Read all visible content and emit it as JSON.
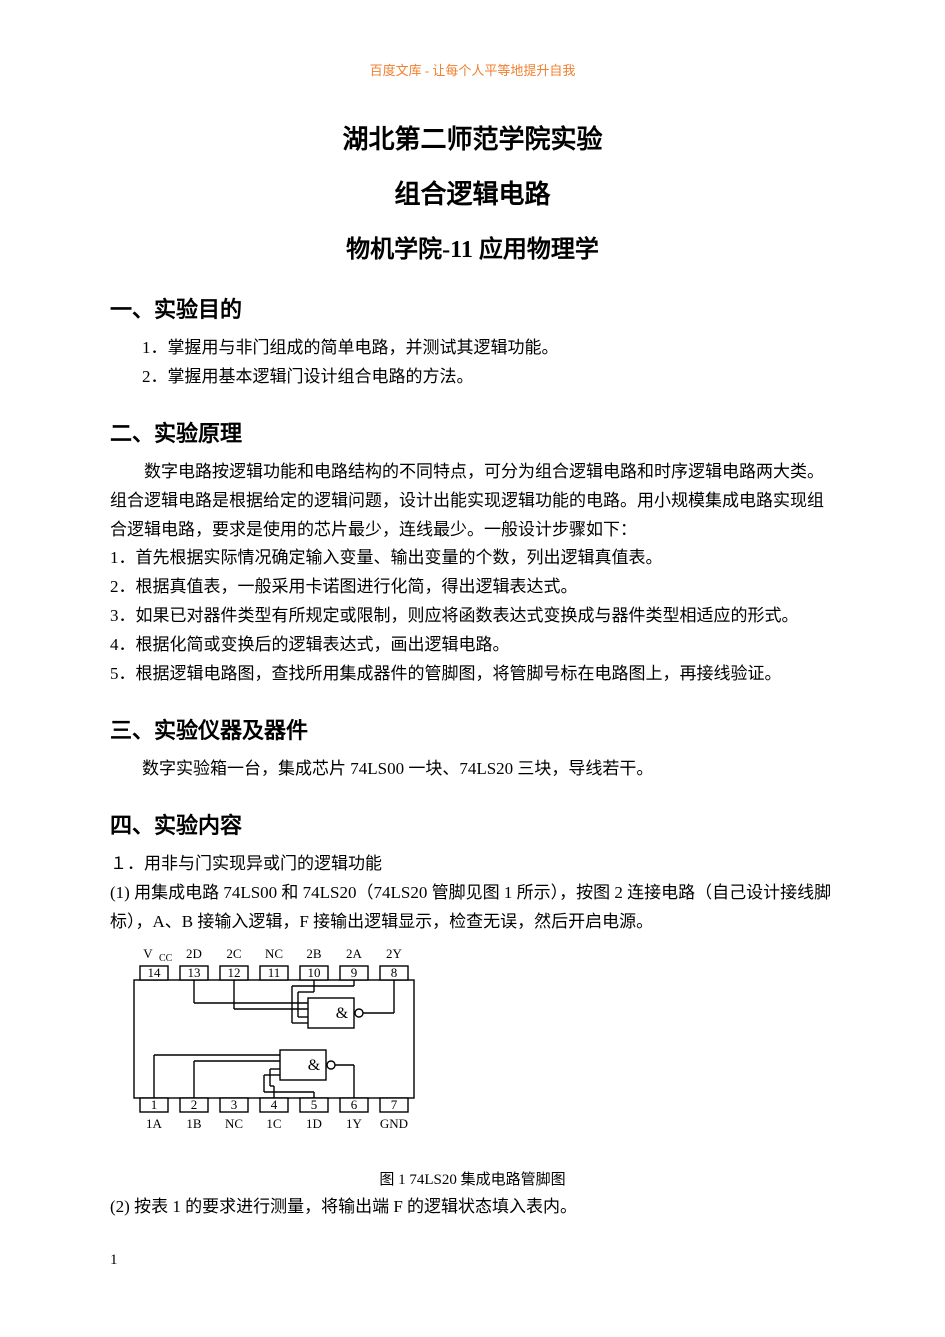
{
  "watermark": "百度文库 - 让每个人平等地提升自我",
  "title_main": "湖北第二师范学院实验",
  "title_sub": "组合逻辑电路",
  "title_class": "物机学院-11 应用物理学",
  "sec1": {
    "heading": "一、实验目的",
    "item1": "1．掌握用与非门组成的简单电路，并测试其逻辑功能。",
    "item2": "2．掌握用基本逻辑门设计组合电路的方法。"
  },
  "sec2": {
    "heading": "二、实验原理",
    "para": "数字电路按逻辑功能和电路结构的不同特点，可分为组合逻辑电路和时序逻辑电路两大类。组合逻辑电路是根据给定的逻辑问题，设计出能实现逻辑功能的电路。用小规模集成电路实现组合逻辑电路，要求是使用的芯片最少，连线最少。一般设计步骤如下：",
    "s1": "1．首先根据实际情况确定输入变量、输出变量的个数，列出逻辑真值表。",
    "s2": "2．根据真值表，一般采用卡诺图进行化简，得出逻辑表达式。",
    "s3": "3．如果已对器件类型有所规定或限制，则应将函数表达式变换成与器件类型相适应的形式。",
    "s4": "4．根据化简或变换后的逻辑表达式，画出逻辑电路。",
    "s5": "5．根据逻辑电路图，查找所用集成器件的管脚图，将管脚号标在电路图上，再接线验证。"
  },
  "sec3": {
    "heading": "三、实验仪器及器件",
    "text": "数字实验箱一台，集成芯片 74LS00 一块、74LS20 三块，导线若干。"
  },
  "sec4": {
    "heading": "四、实验内容",
    "sub1": "１．用非与门实现异或门的逻辑功能",
    "p1": "(1) 用集成电路 74LS00 和 74LS20（74LS20 管脚见图 1 所示），按图 2 连接电路（自己设计接线脚标），A、B 接输入逻辑，F 接输出逻辑显示，检查无误，然后开启电源。",
    "caption": "图 1    74LS20 集成电路管脚图",
    "p2": "(2) 按表 1 的要求进行测量，将输出端 F 的逻辑状态填入表内。"
  },
  "page_num": "1",
  "diagram": {
    "top_labels": [
      "V",
      "CC",
      "2D",
      "2C",
      "NC",
      "2B",
      "2A",
      "2Y"
    ],
    "top_pins": [
      "14",
      "13",
      "12",
      "11",
      "10",
      "9",
      "8"
    ],
    "bot_pins": [
      "1",
      "2",
      "3",
      "4",
      "5",
      "6",
      "7"
    ],
    "bot_labels": [
      "1A",
      "1B",
      "NC",
      "1C",
      "1D",
      "1Y",
      "GND"
    ],
    "gate_symbol": "&",
    "line_color": "#000000",
    "line_width": 1.4,
    "font_size_label": 13,
    "font_size_pin": 13
  }
}
